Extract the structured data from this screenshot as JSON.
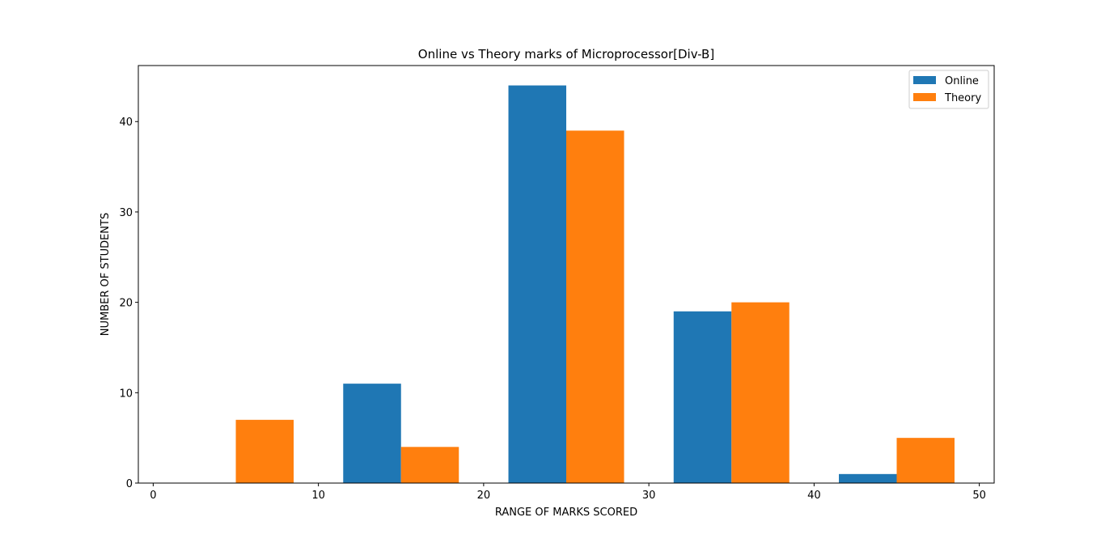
{
  "chart_data": {
    "type": "bar",
    "title": "Online vs Theory marks of Microprocessor[Div-B]",
    "xlabel": "RANGE OF MARKS SCORED",
    "ylabel": "NUMBER OF STUDENTS",
    "xlim": [
      -0.9,
      50.9
    ],
    "ylim": [
      0,
      46.2
    ],
    "xticks": [
      0,
      10,
      20,
      30,
      40,
      50
    ],
    "yticks": [
      0,
      10,
      20,
      30,
      40
    ],
    "grid": false,
    "legend_position": "top-right",
    "series": [
      {
        "name": "Online",
        "color": "#1f77b4",
        "bars": [
          {
            "x_start": 1.5,
            "x_end": 5.0,
            "value": 0
          },
          {
            "x_start": 11.5,
            "x_end": 15.0,
            "value": 11
          },
          {
            "x_start": 21.5,
            "x_end": 25.0,
            "value": 44
          },
          {
            "x_start": 31.5,
            "x_end": 35.0,
            "value": 19
          },
          {
            "x_start": 41.5,
            "x_end": 45.0,
            "value": 1
          }
        ]
      },
      {
        "name": "Theory",
        "color": "#ff7f0e",
        "bars": [
          {
            "x_start": 5.0,
            "x_end": 8.5,
            "value": 7
          },
          {
            "x_start": 15.0,
            "x_end": 18.5,
            "value": 4
          },
          {
            "x_start": 25.0,
            "x_end": 28.5,
            "value": 39
          },
          {
            "x_start": 35.0,
            "x_end": 38.5,
            "value": 20
          },
          {
            "x_start": 45.0,
            "x_end": 48.5,
            "value": 5
          }
        ]
      }
    ]
  }
}
